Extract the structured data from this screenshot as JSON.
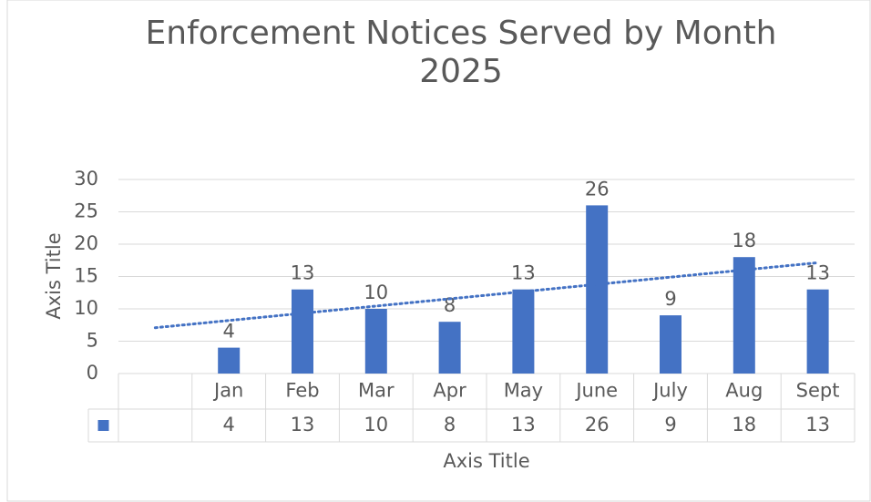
{
  "chart_data": {
    "type": "bar",
    "title": "Enforcement Notices Served by Month",
    "subtitle": "2025",
    "x_label": "Axis Title",
    "y_label": "Axis Title",
    "categories": [
      null,
      "Jan",
      "Feb",
      "Mar",
      "Apr",
      "May",
      "June",
      "July",
      "Aug",
      "Sept"
    ],
    "values": [
      null,
      4,
      13,
      10,
      8,
      13,
      26,
      9,
      18,
      13
    ],
    "color": "#4472c4",
    "ylim": [
      0,
      30
    ],
    "yticks": [
      0,
      5,
      10,
      15,
      20,
      25,
      30
    ],
    "grid": true,
    "data_labels": true,
    "data_table": true,
    "trendline": {
      "type": "linear",
      "color": "#4472c4",
      "style": "dotted"
    }
  }
}
